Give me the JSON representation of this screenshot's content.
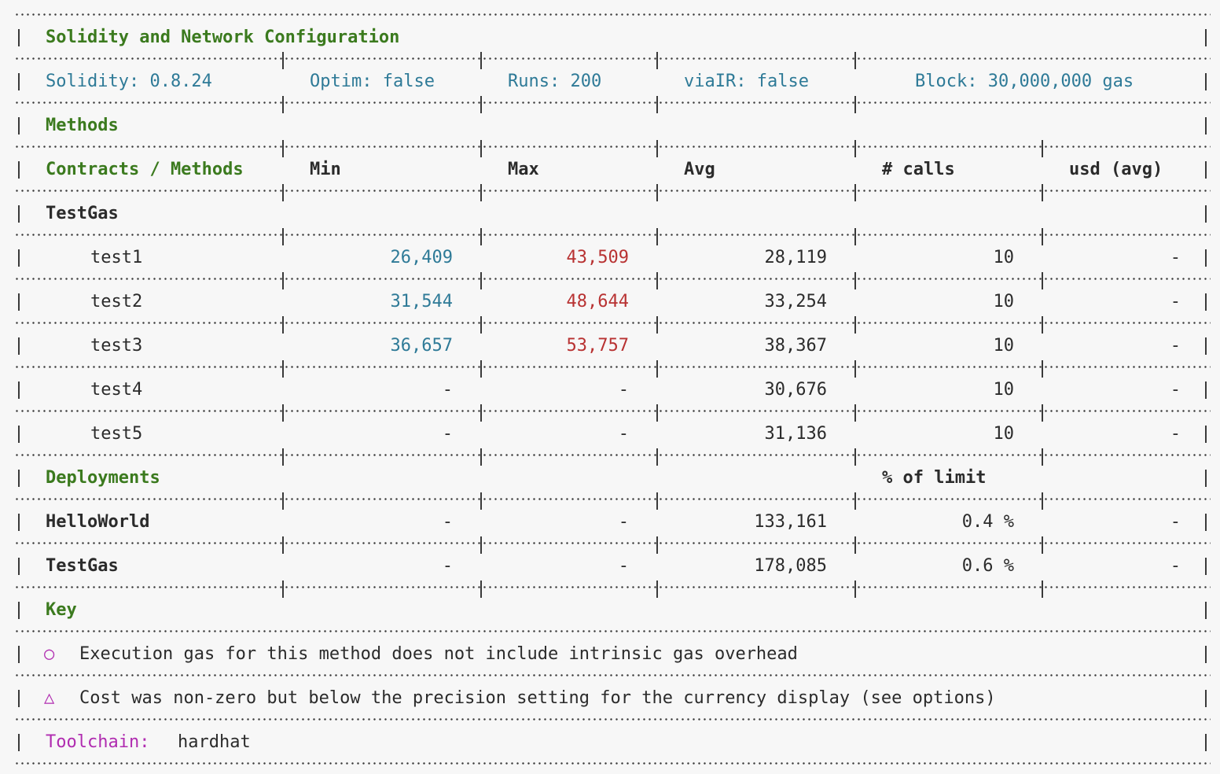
{
  "config": {
    "title": "Solidity and Network Configuration",
    "solidity": "Solidity: 0.8.24",
    "optim": "Optim: false",
    "runs": "Runs: 200",
    "viair": "viaIR: false",
    "block": "Block: 30,000,000 gas"
  },
  "methods": {
    "title": "Methods",
    "headers": {
      "contracts": "Contracts / Methods",
      "min": "Min",
      "max": "Max",
      "avg": "Avg",
      "calls": "# calls",
      "usd": "usd (avg)"
    },
    "contract": "TestGas",
    "rows": [
      {
        "name": "test1",
        "min": "26,409",
        "max": "43,509",
        "avg": "28,119",
        "calls": "10",
        "usd": "-"
      },
      {
        "name": "test2",
        "min": "31,544",
        "max": "48,644",
        "avg": "33,254",
        "calls": "10",
        "usd": "-"
      },
      {
        "name": "test3",
        "min": "36,657",
        "max": "53,757",
        "avg": "38,367",
        "calls": "10",
        "usd": "-"
      },
      {
        "name": "test4",
        "min": "-",
        "max": "-",
        "avg": "30,676",
        "calls": "10",
        "usd": "-"
      },
      {
        "name": "test5",
        "min": "-",
        "max": "-",
        "avg": "31,136",
        "calls": "10",
        "usd": "-"
      }
    ]
  },
  "deployments": {
    "title": "Deployments",
    "limit_header": "% of limit",
    "rows": [
      {
        "name": "HelloWorld",
        "min": "-",
        "max": "-",
        "avg": "133,161",
        "limit": "0.4 %",
        "usd": "-"
      },
      {
        "name": "TestGas",
        "min": "-",
        "max": "-",
        "avg": "178,085",
        "limit": "0.6 %",
        "usd": "-"
      }
    ]
  },
  "key": {
    "title": "Key",
    "items": [
      {
        "symbol": "○",
        "text": "Execution gas for this method does not include intrinsic gas overhead"
      },
      {
        "symbol": "△",
        "text": "Cost was non-zero but below the precision setting for the currency display (see options)"
      }
    ]
  },
  "toolchain": {
    "label": "Toolchain:",
    "value": "hardhat"
  },
  "colors": {
    "header": "#3b7a1e",
    "config": "#2e7a97",
    "min": "#2e7a97",
    "max": "#b83232",
    "accent": "#b02cb0"
  }
}
